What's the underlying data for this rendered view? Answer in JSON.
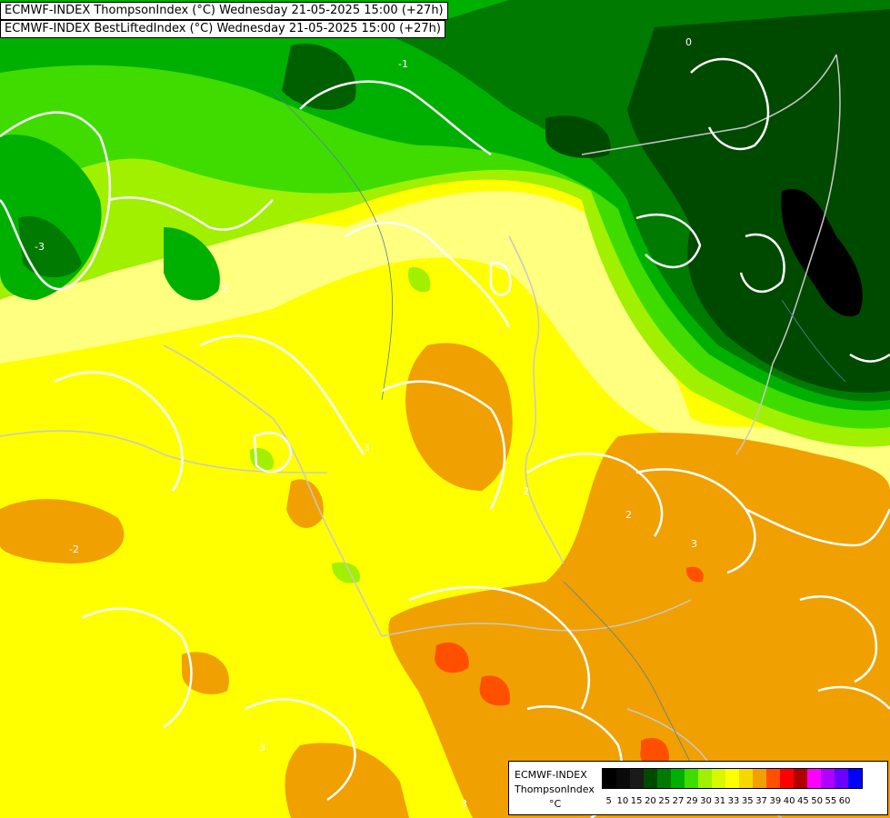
{
  "header": {
    "line1": "ECMWF-INDEX ThompsonIndex (°C) Wednesday 21-05-2025 15:00 (+27h)",
    "line2": "ECMWF-INDEX BestLiftedIndex (°C) Wednesday 21-05-2025 15:00 (+27h)"
  },
  "legend": {
    "title_line1": "ECMWF-INDEX",
    "title_line2": "ThompsonIndex",
    "unit": "°C",
    "ticks": [
      "5",
      "10",
      "15",
      "20",
      "25",
      "27",
      "29",
      "30",
      "31",
      "33",
      "35",
      "37",
      "39",
      "40",
      "45",
      "50",
      "55",
      "60"
    ],
    "colors": [
      "#000000",
      "#0a0a0a",
      "#1a1a1a",
      "#004a00",
      "#007a00",
      "#00b000",
      "#40dc00",
      "#a0f000",
      "#d8f800",
      "#ffff00",
      "#f4d800",
      "#f0a000",
      "#ff5000",
      "#ff0000",
      "#b00000",
      "#ff00ff",
      "#b000ff",
      "#6a00ff",
      "#0000ff"
    ]
  },
  "map": {
    "contour_labels": [
      "-3",
      "-2",
      "-1",
      "0",
      "2",
      "3"
    ],
    "colors": {
      "dark_green": "#004a00",
      "mid_green": "#007a00",
      "green": "#00b000",
      "bright_green": "#40dc00",
      "lime": "#a0f000",
      "pale_yellow": "#ffff80",
      "yellow": "#ffff00",
      "orange": "#f0a000",
      "red_orange": "#ff5000",
      "black": "#000000",
      "contour": "#ffffff",
      "border": "#c8c8c8"
    }
  }
}
